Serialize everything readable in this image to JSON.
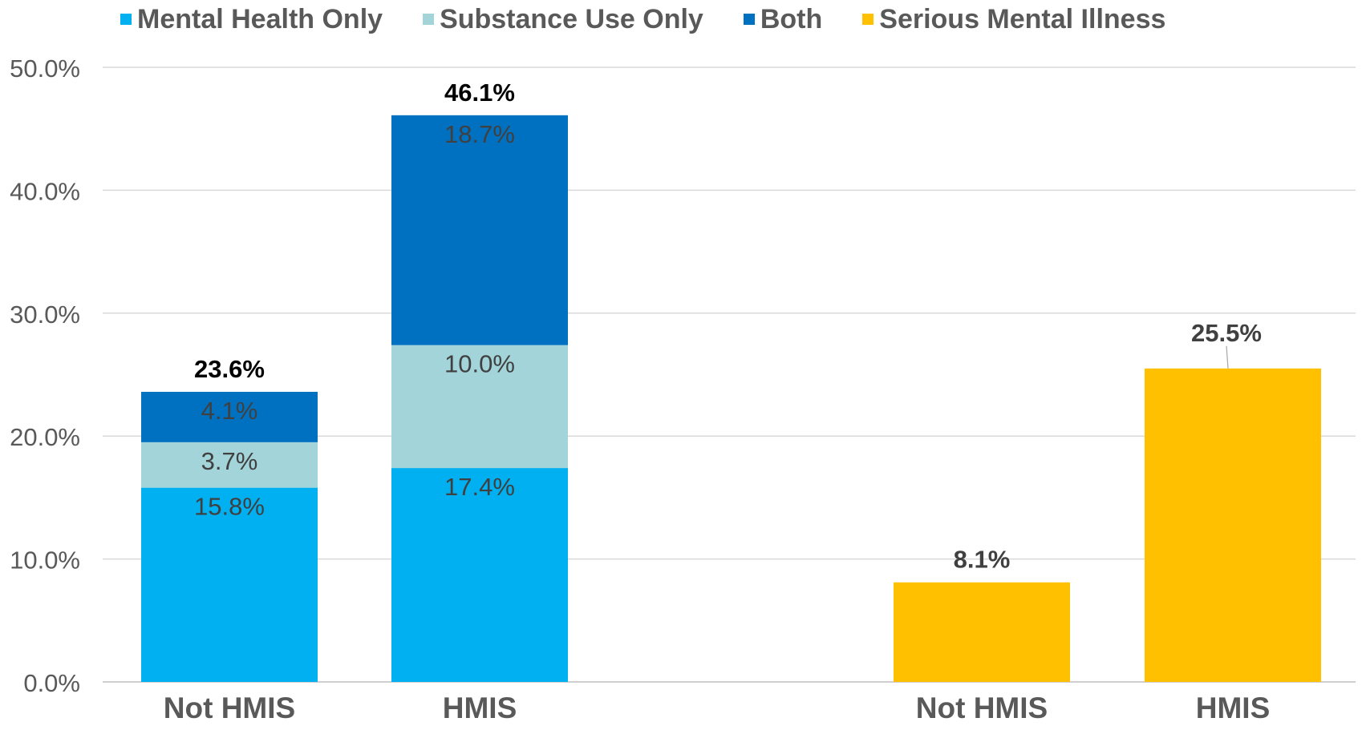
{
  "legend": [
    {
      "label": "Mental Health Only",
      "color": "#00b0f0"
    },
    {
      "label": "Substance Use Only",
      "color": "#a2d4d9"
    },
    {
      "label": "Both",
      "color": "#0070c0"
    },
    {
      "label": "Serious Mental Illness",
      "color": "#ffc000"
    }
  ],
  "chart_data": {
    "type": "bar",
    "ylim": [
      0,
      50
    ],
    "yticks": [
      "0.0%",
      "10.0%",
      "20.0%",
      "30.0%",
      "40.0%",
      "50.0%"
    ],
    "grid": true,
    "legend_position": "top",
    "groups": [
      {
        "categories": [
          "Not HMIS",
          "HMIS"
        ],
        "stacked": true,
        "series": [
          {
            "name": "Mental Health Only",
            "color": "#00b0f0",
            "values": [
              15.8,
              17.4
            ],
            "labels": [
              "15.8%",
              "17.4%"
            ]
          },
          {
            "name": "Substance Use Only",
            "color": "#a2d4d9",
            "values": [
              3.7,
              10.0
            ],
            "labels": [
              "3.7%",
              "10.0%"
            ]
          },
          {
            "name": "Both",
            "color": "#0070c0",
            "values": [
              4.1,
              18.7
            ],
            "labels": [
              "4.1%",
              "18.7%"
            ]
          }
        ],
        "totals": [
          23.6,
          46.1
        ],
        "total_labels": [
          "23.6%",
          "46.1%"
        ]
      },
      {
        "categories": [
          "Not HMIS",
          "HMIS"
        ],
        "stacked": false,
        "series": [
          {
            "name": "Serious Mental Illness",
            "color": "#ffc000",
            "values": [
              8.1,
              25.5
            ],
            "labels": [
              "8.1%",
              "25.5%"
            ]
          }
        ]
      }
    ]
  }
}
